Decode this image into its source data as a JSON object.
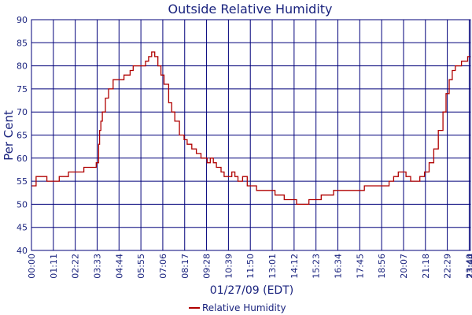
{
  "chart_data": {
    "type": "line",
    "title": "Outside Relative Humidity",
    "ylabel": "Per Cent",
    "xlabel": "01/27/09 (EDT)",
    "ylim": [
      40,
      90
    ],
    "y_ticks": [
      40,
      45,
      50,
      55,
      60,
      65,
      70,
      75,
      80,
      85,
      90
    ],
    "x_tick_labels": [
      "00:00",
      "01:11",
      "02:22",
      "03:33",
      "04:44",
      "05:55",
      "07:06",
      "08:17",
      "09:28",
      "10:39",
      "11:50",
      "13:01",
      "14:12",
      "15:23",
      "16:34",
      "17:45",
      "18:56",
      "20:07",
      "21:18",
      "22:29",
      "23:40",
      "23:44"
    ],
    "grid": true,
    "legend_position": "bottom-center",
    "colors": {
      "series": "#b00000",
      "axis_text": "#1a237e",
      "grid": "#00007a"
    },
    "series": [
      {
        "name": "Relative Humidity",
        "x_minutes": [
          0,
          15,
          30,
          50,
          60,
          75,
          90,
          105,
          120,
          135,
          150,
          170,
          180,
          200,
          210,
          213,
          218,
          221,
          225,
          230,
          240,
          250,
          265,
          280,
          288,
          300,
          320,
          330,
          345,
          360,
          370,
          380,
          390,
          400,
          410,
          420,
          430,
          445,
          455,
          465,
          480,
          495,
          505,
          520,
          535,
          550,
          560,
          570,
          580,
          590,
          600,
          615,
          625,
          640,
          650,
          660,
          670,
          685,
          700,
          710,
          730,
          750,
          770,
          790,
          805,
          820,
          840,
          860,
          880,
          900,
          920,
          940,
          960,
          980,
          1000,
          1020,
          1040,
          1060,
          1080,
          1100,
          1120,
          1140,
          1160,
          1175,
          1190,
          1205,
          1215,
          1230,
          1245,
          1260,
          1275,
          1290,
          1305,
          1320,
          1335,
          1345,
          1355,
          1365,
          1375,
          1385,
          1395,
          1405,
          1415,
          1425
        ],
        "values": [
          54,
          56,
          56,
          55,
          55,
          55,
          56,
          56,
          57,
          57,
          57,
          58,
          58,
          58,
          59,
          59,
          63,
          66,
          68,
          70,
          73,
          75,
          77,
          77,
          77,
          78,
          79,
          80,
          80,
          80,
          81,
          82,
          83,
          82,
          80,
          78,
          76,
          72,
          70,
          68,
          65,
          64,
          63,
          62,
          61,
          60,
          60,
          59,
          60,
          59,
          58,
          57,
          56,
          56,
          57,
          56,
          55,
          56,
          54,
          54,
          53,
          53,
          53,
          52,
          52,
          51,
          51,
          50,
          50,
          51,
          51,
          52,
          52,
          53,
          53,
          53,
          53,
          53,
          54,
          54,
          54,
          54,
          55,
          56,
          57,
          57,
          56,
          55,
          55,
          56,
          57,
          59,
          62,
          66,
          70,
          74,
          77,
          79,
          80,
          80,
          81,
          81,
          82,
          82
        ]
      }
    ]
  }
}
